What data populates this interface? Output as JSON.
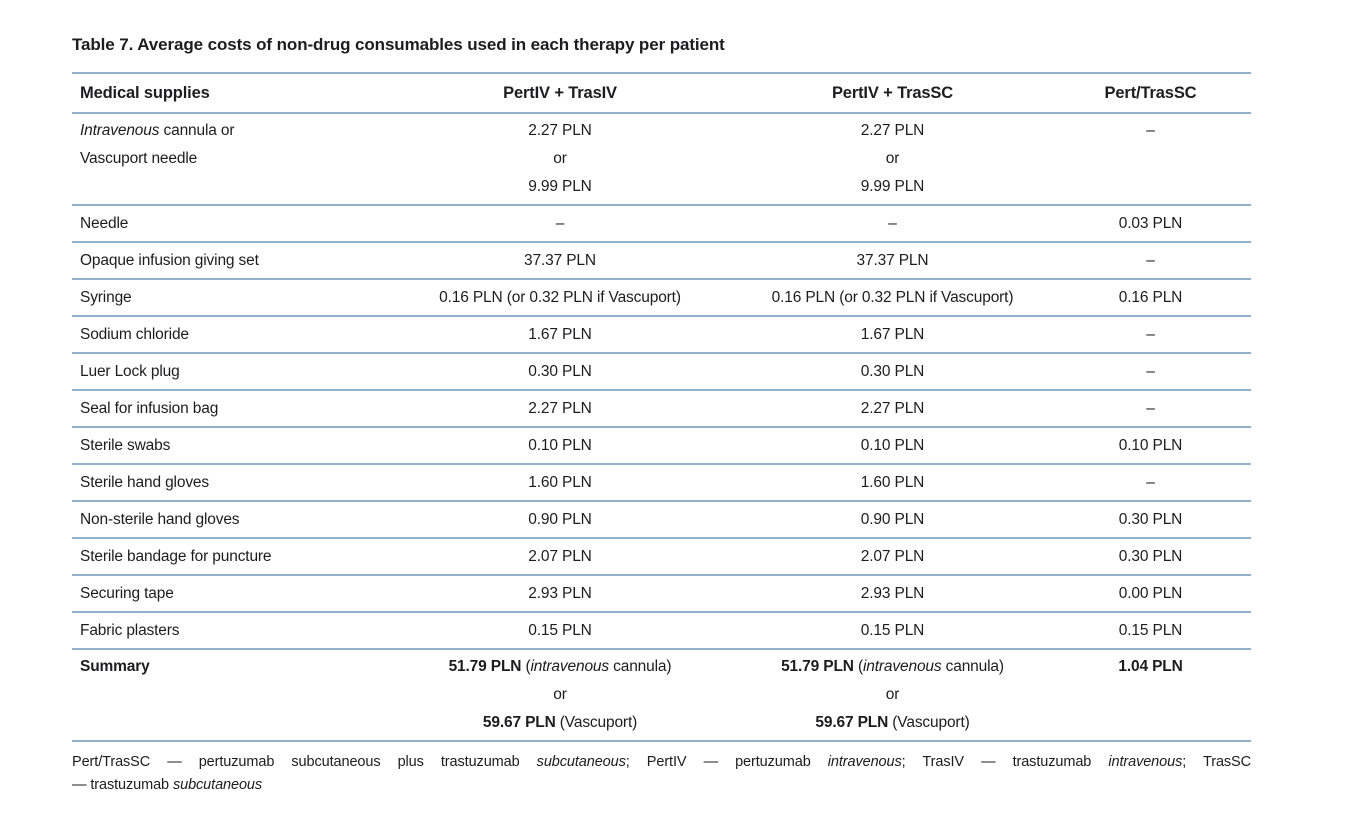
{
  "title": "Table 7. Average costs of non-drug consumables used in each therapy per patient",
  "colors": {
    "rule_blue": "#8fb1cc",
    "text": "#1d1d1f"
  },
  "table": {
    "type": "table",
    "columns": [
      "Medical supplies",
      "PertIV + TrasIV",
      "PertIV + TrasSC",
      "Pert/TrasSC"
    ],
    "rows": [
      {
        "top": true,
        "label": [
          [
            {
              "t": "Intravenous",
              "i": true
            },
            {
              "t": " cannula or"
            }
          ],
          [
            {
              "t": "Vascuport needle"
            }
          ]
        ],
        "c1": [
          [
            {
              "t": "2.27 PLN"
            }
          ],
          [
            {
              "t": "or"
            }
          ],
          [
            {
              "t": "9.99 PLN"
            }
          ]
        ],
        "c2": [
          [
            {
              "t": "2.27 PLN"
            }
          ],
          [
            {
              "t": "or"
            }
          ],
          [
            {
              "t": "9.99 PLN"
            }
          ]
        ],
        "c3": [
          [
            {
              "t": "–"
            }
          ]
        ]
      },
      {
        "label": [
          [
            {
              "t": "Needle"
            }
          ]
        ],
        "c1": [
          [
            {
              "t": "–"
            }
          ]
        ],
        "c2": [
          [
            {
              "t": "–"
            }
          ]
        ],
        "c3": [
          [
            {
              "t": "0.03 PLN"
            }
          ]
        ]
      },
      {
        "label": [
          [
            {
              "t": "Opaque infusion giving set"
            }
          ]
        ],
        "c1": [
          [
            {
              "t": "37.37 PLN"
            }
          ]
        ],
        "c2": [
          [
            {
              "t": "37.37 PLN"
            }
          ]
        ],
        "c3": [
          [
            {
              "t": "–"
            }
          ]
        ]
      },
      {
        "label": [
          [
            {
              "t": "Syringe"
            }
          ]
        ],
        "c1": [
          [
            {
              "t": "0.16 PLN (or 0.32 PLN if Vascuport)"
            }
          ]
        ],
        "c2": [
          [
            {
              "t": "0.16 PLN (or 0.32 PLN if Vascuport)"
            }
          ]
        ],
        "c3": [
          [
            {
              "t": "0.16 PLN"
            }
          ]
        ]
      },
      {
        "label": [
          [
            {
              "t": "Sodium chloride"
            }
          ]
        ],
        "c1": [
          [
            {
              "t": "1.67 PLN"
            }
          ]
        ],
        "c2": [
          [
            {
              "t": "1.67 PLN"
            }
          ]
        ],
        "c3": [
          [
            {
              "t": "–"
            }
          ]
        ]
      },
      {
        "label": [
          [
            {
              "t": "Luer Lock plug"
            }
          ]
        ],
        "c1": [
          [
            {
              "t": "0.30 PLN"
            }
          ]
        ],
        "c2": [
          [
            {
              "t": "0.30 PLN"
            }
          ]
        ],
        "c3": [
          [
            {
              "t": "–"
            }
          ]
        ]
      },
      {
        "label": [
          [
            {
              "t": "Seal for infusion bag"
            }
          ]
        ],
        "c1": [
          [
            {
              "t": "2.27 PLN"
            }
          ]
        ],
        "c2": [
          [
            {
              "t": "2.27 PLN"
            }
          ]
        ],
        "c3": [
          [
            {
              "t": "–"
            }
          ]
        ]
      },
      {
        "label": [
          [
            {
              "t": "Sterile swabs"
            }
          ]
        ],
        "c1": [
          [
            {
              "t": "0.10 PLN"
            }
          ]
        ],
        "c2": [
          [
            {
              "t": "0.10 PLN"
            }
          ]
        ],
        "c3": [
          [
            {
              "t": "0.10 PLN"
            }
          ]
        ]
      },
      {
        "label": [
          [
            {
              "t": "Sterile hand gloves"
            }
          ]
        ],
        "c1": [
          [
            {
              "t": "1.60 PLN"
            }
          ]
        ],
        "c2": [
          [
            {
              "t": "1.60 PLN"
            }
          ]
        ],
        "c3": [
          [
            {
              "t": "–"
            }
          ]
        ]
      },
      {
        "label": [
          [
            {
              "t": "Non-sterile hand gloves"
            }
          ]
        ],
        "c1": [
          [
            {
              "t": "0.90 PLN"
            }
          ]
        ],
        "c2": [
          [
            {
              "t": "0.90 PLN"
            }
          ]
        ],
        "c3": [
          [
            {
              "t": "0.30 PLN"
            }
          ]
        ]
      },
      {
        "label": [
          [
            {
              "t": "Sterile bandage for puncture"
            }
          ]
        ],
        "c1": [
          [
            {
              "t": "2.07 PLN"
            }
          ]
        ],
        "c2": [
          [
            {
              "t": "2.07 PLN"
            }
          ]
        ],
        "c3": [
          [
            {
              "t": "0.30 PLN"
            }
          ]
        ]
      },
      {
        "label": [
          [
            {
              "t": "Securing tape"
            }
          ]
        ],
        "c1": [
          [
            {
              "t": "2.93 PLN"
            }
          ]
        ],
        "c2": [
          [
            {
              "t": "2.93 PLN"
            }
          ]
        ],
        "c3": [
          [
            {
              "t": "0.00 PLN"
            }
          ]
        ]
      },
      {
        "label": [
          [
            {
              "t": "Fabric plasters"
            }
          ]
        ],
        "c1": [
          [
            {
              "t": "0.15 PLN"
            }
          ]
        ],
        "c2": [
          [
            {
              "t": "0.15 PLN"
            }
          ]
        ],
        "c3": [
          [
            {
              "t": "0.15 PLN"
            }
          ]
        ]
      },
      {
        "top": true,
        "label": [
          [
            {
              "t": "Summary",
              "b": true
            }
          ]
        ],
        "c1": [
          [
            {
              "t": "51.79 PLN",
              "b": true
            },
            {
              "t": " ("
            },
            {
              "t": "intravenous",
              "i": true
            },
            {
              "t": " cannula)"
            }
          ],
          [
            {
              "t": "or"
            }
          ],
          [
            {
              "t": "59.67 PLN",
              "b": true
            },
            {
              "t": " (Vascuport)"
            }
          ]
        ],
        "c2": [
          [
            {
              "t": "51.79 PLN",
              "b": true
            },
            {
              "t": " ("
            },
            {
              "t": "intravenous",
              "i": true
            },
            {
              "t": " cannula)"
            }
          ],
          [
            {
              "t": "or"
            }
          ],
          [
            {
              "t": "59.67 PLN",
              "b": true
            },
            {
              "t": " (Vascuport)"
            }
          ]
        ],
        "c3": [
          [
            {
              "t": "1.04 PLN",
              "b": true
            }
          ]
        ]
      }
    ]
  },
  "footnote_lines": [
    [
      {
        "t": "Pert/TrasSC — pertuzumab subcutaneous plus trastuzumab "
      },
      {
        "t": "subcutaneous",
        "i": true
      },
      {
        "t": "; PertIV — pertuzumab "
      },
      {
        "t": "intravenous",
        "i": true
      },
      {
        "t": "; TrasIV — trastuzumab "
      },
      {
        "t": "intravenous",
        "i": true
      },
      {
        "t": "; TrasSC"
      }
    ],
    [
      {
        "t": "— trastuzumab "
      },
      {
        "t": "subcutaneous",
        "i": true
      }
    ]
  ]
}
